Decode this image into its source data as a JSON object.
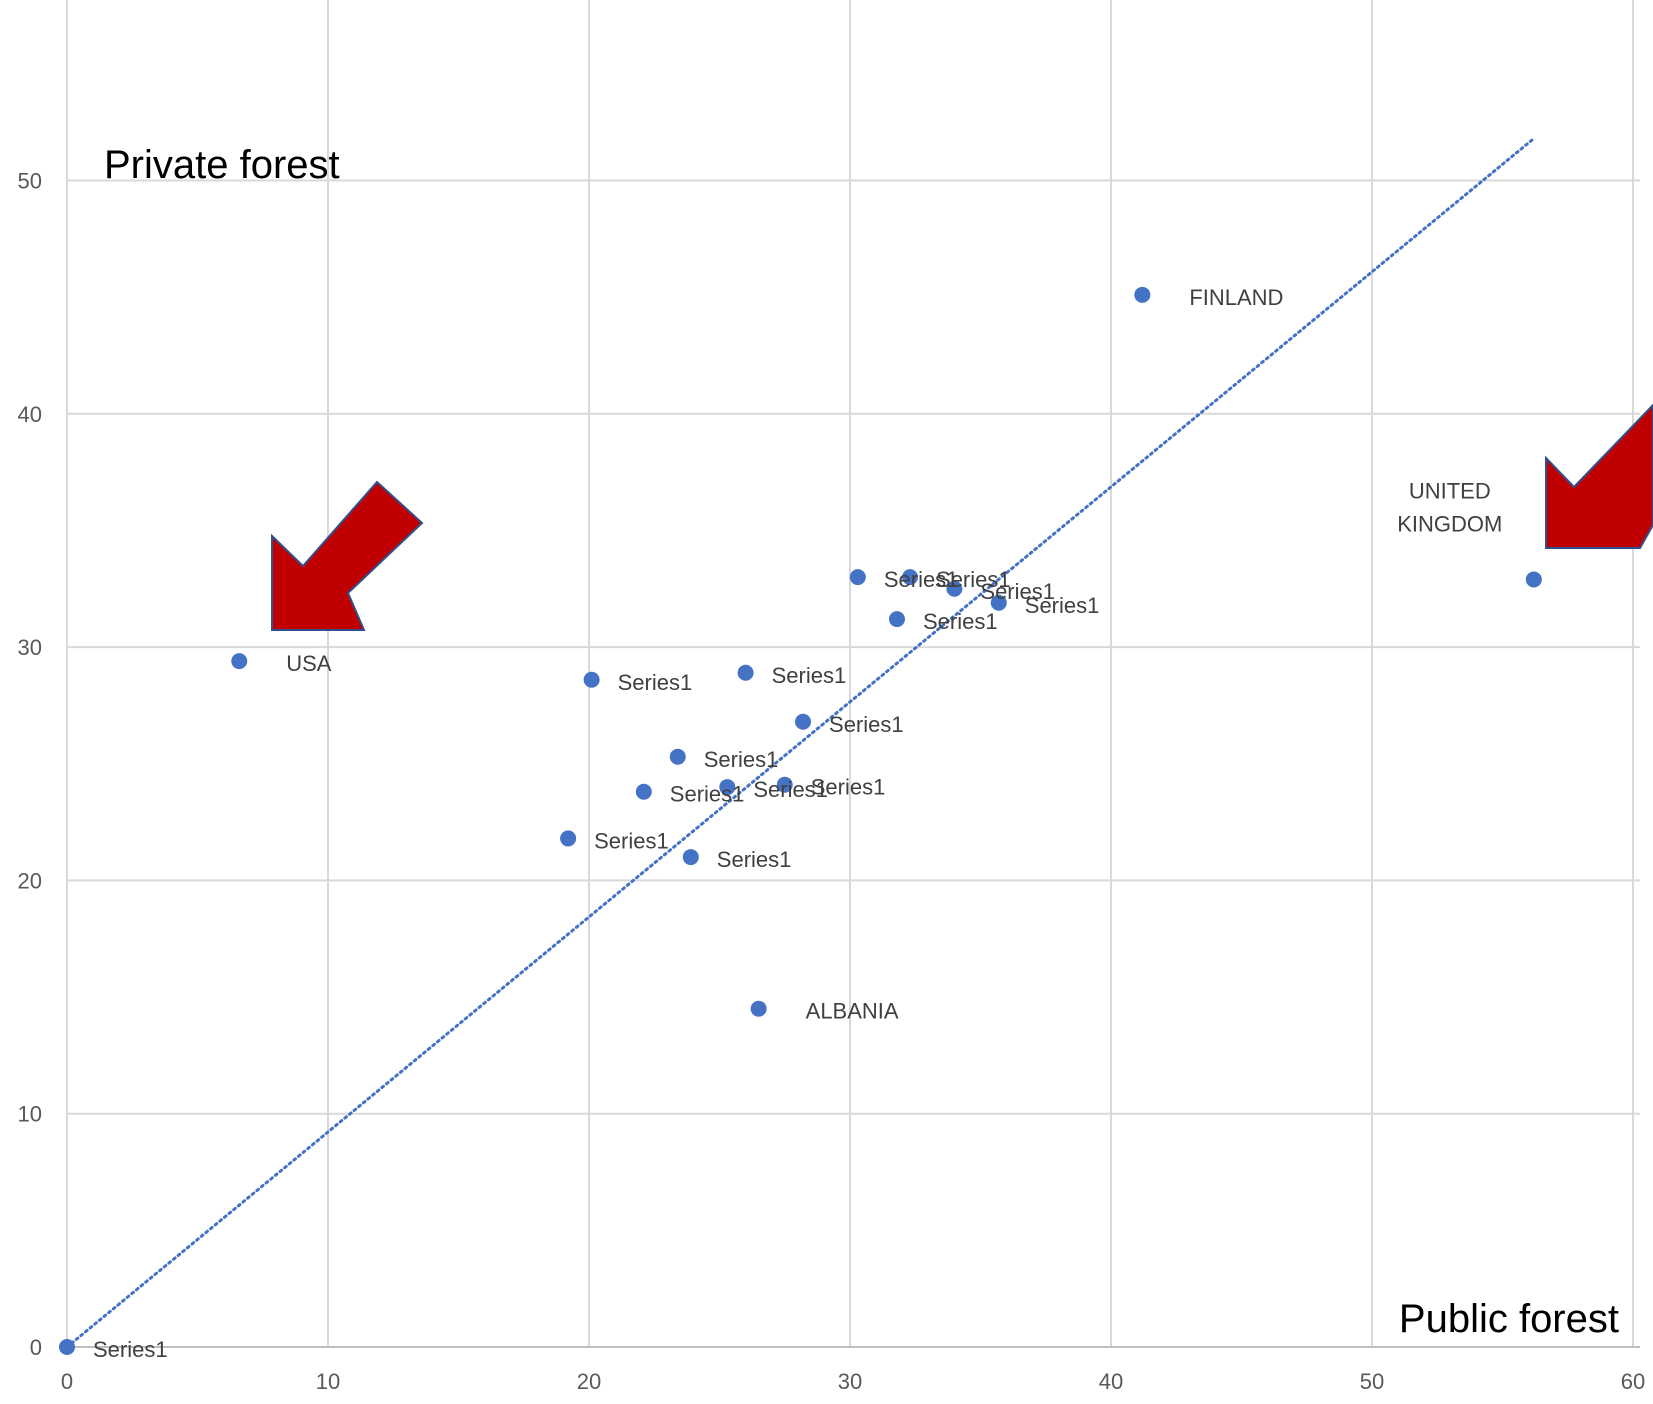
{
  "chart_data": {
    "type": "scatter",
    "title": "",
    "annotations": {
      "y_title": "Private forest",
      "x_title": "Public forest"
    },
    "xlim": [
      0,
      60
    ],
    "ylim": [
      0,
      60
    ],
    "x_ticks": [
      0,
      10,
      20,
      30,
      40,
      50,
      60
    ],
    "y_ticks": [
      0,
      10,
      20,
      30,
      40,
      50
    ],
    "x_tick_labels": [
      "0",
      "10",
      "20",
      "30",
      "40",
      "50",
      "60"
    ],
    "y_tick_labels": [
      "0",
      "10",
      "20",
      "30",
      "40",
      "50"
    ],
    "grid": true,
    "legend": "none",
    "trendline": {
      "style": "dotted",
      "from": [
        0,
        0
      ],
      "to": [
        56.2,
        51.8
      ]
    },
    "series": [
      {
        "points": [
          {
            "x": 0.0,
            "y": 0.0,
            "label": "Series1"
          },
          {
            "x": 6.6,
            "y": 29.4,
            "label": "USA"
          },
          {
            "x": 41.2,
            "y": 45.1,
            "label": "FINLAND"
          },
          {
            "x": 56.2,
            "y": 32.9,
            "label": "UNITED\nKINGDOM"
          },
          {
            "x": 26.5,
            "y": 14.5,
            "label": "ALBANIA"
          },
          {
            "x": 30.3,
            "y": 33.0,
            "label": "Series1"
          },
          {
            "x": 32.3,
            "y": 33.0,
            "label": "Series1"
          },
          {
            "x": 34.0,
            "y": 32.5,
            "label": "Series1"
          },
          {
            "x": 35.7,
            "y": 31.9,
            "label": "Series1"
          },
          {
            "x": 31.8,
            "y": 31.2,
            "label": "Series1"
          },
          {
            "x": 26.0,
            "y": 28.9,
            "label": "Series1"
          },
          {
            "x": 20.1,
            "y": 28.6,
            "label": "Series1"
          },
          {
            "x": 28.2,
            "y": 26.8,
            "label": "Series1"
          },
          {
            "x": 23.4,
            "y": 25.3,
            "label": "Series1"
          },
          {
            "x": 22.1,
            "y": 23.8,
            "label": "Series1"
          },
          {
            "x": 25.3,
            "y": 24.0,
            "label": "Series1"
          },
          {
            "x": 27.5,
            "y": 24.1,
            "label": "Series1"
          },
          {
            "x": 19.2,
            "y": 21.8,
            "label": "Series1"
          },
          {
            "x": 23.9,
            "y": 21.0,
            "label": "Series1"
          }
        ]
      }
    ],
    "colors": {
      "marker": "#4472C4",
      "trendline": "#4472C4",
      "grid": "#d9d9d9",
      "arrow_fill": "#C00000",
      "arrow_stroke": "#2F4F8F"
    },
    "arrows": [
      {
        "points_to": "USA",
        "direction": "down-left"
      },
      {
        "points_to": "UNITED KINGDOM",
        "direction": "down-left"
      }
    ]
  }
}
